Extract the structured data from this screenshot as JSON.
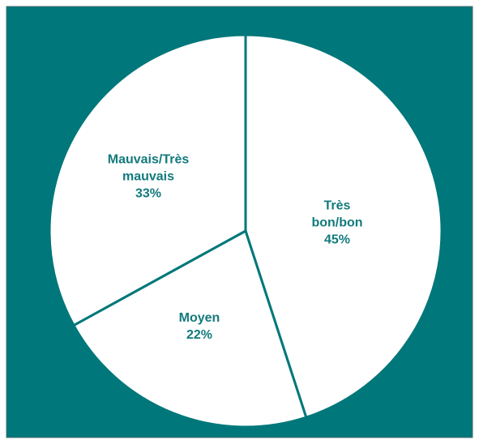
{
  "chart_data": {
    "type": "pie",
    "categories": [
      "Très bon/bon",
      "Moyen",
      "Mauvais/Très mauvais"
    ],
    "values": [
      45,
      22,
      33
    ],
    "value_labels": [
      "45%",
      "22%",
      "33%"
    ],
    "background": "#00777a",
    "slice_color": "#ffffff",
    "label_color": "#137a7d"
  }
}
